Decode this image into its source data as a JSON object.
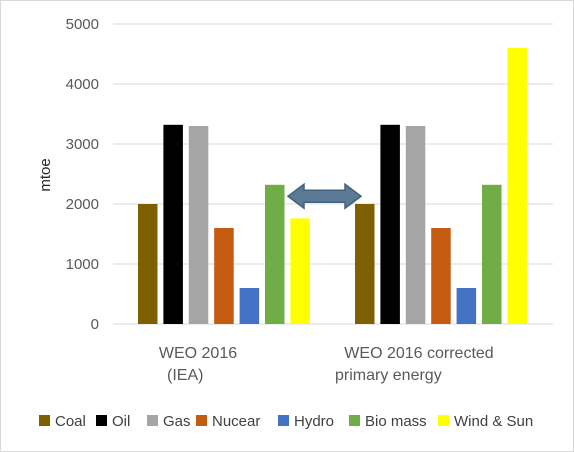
{
  "chart_data": {
    "type": "bar",
    "ylabel": "mtoe",
    "ylim": [
      0,
      5000
    ],
    "yticks": [
      0,
      1000,
      2000,
      3000,
      4000,
      5000
    ],
    "grid": true,
    "legend_position": "bottom",
    "categories": [
      {
        "lines": [
          "WEO 2016",
          "(IEA)"
        ]
      },
      {
        "lines": [
          "WEO 2016 corrected",
          "primary energy"
        ]
      }
    ],
    "series": [
      {
        "name": "Coal",
        "color": "#7f6000",
        "values": [
          2000,
          2000
        ]
      },
      {
        "name": "Oil",
        "color": "#000000",
        "values": [
          3320,
          3320
        ]
      },
      {
        "name": "Gas",
        "color": "#a5a5a5",
        "values": [
          3300,
          3300
        ]
      },
      {
        "name": "Nucear",
        "color": "#c55a11",
        "values": [
          1600,
          1600
        ]
      },
      {
        "name": "Hydro",
        "color": "#4472c4",
        "values": [
          600,
          600
        ]
      },
      {
        "name": "Bio mass",
        "color": "#70ad47",
        "values": [
          2320,
          2320
        ]
      },
      {
        "name": "Wind & Sun",
        "color": "#ffff00",
        "values": [
          1760,
          4600
        ]
      }
    ],
    "annotation": {
      "shape": "double-arrow",
      "color": "#5b7a95",
      "between": "group1 wind & sun and group2 coal",
      "at_value": 2130
    }
  }
}
